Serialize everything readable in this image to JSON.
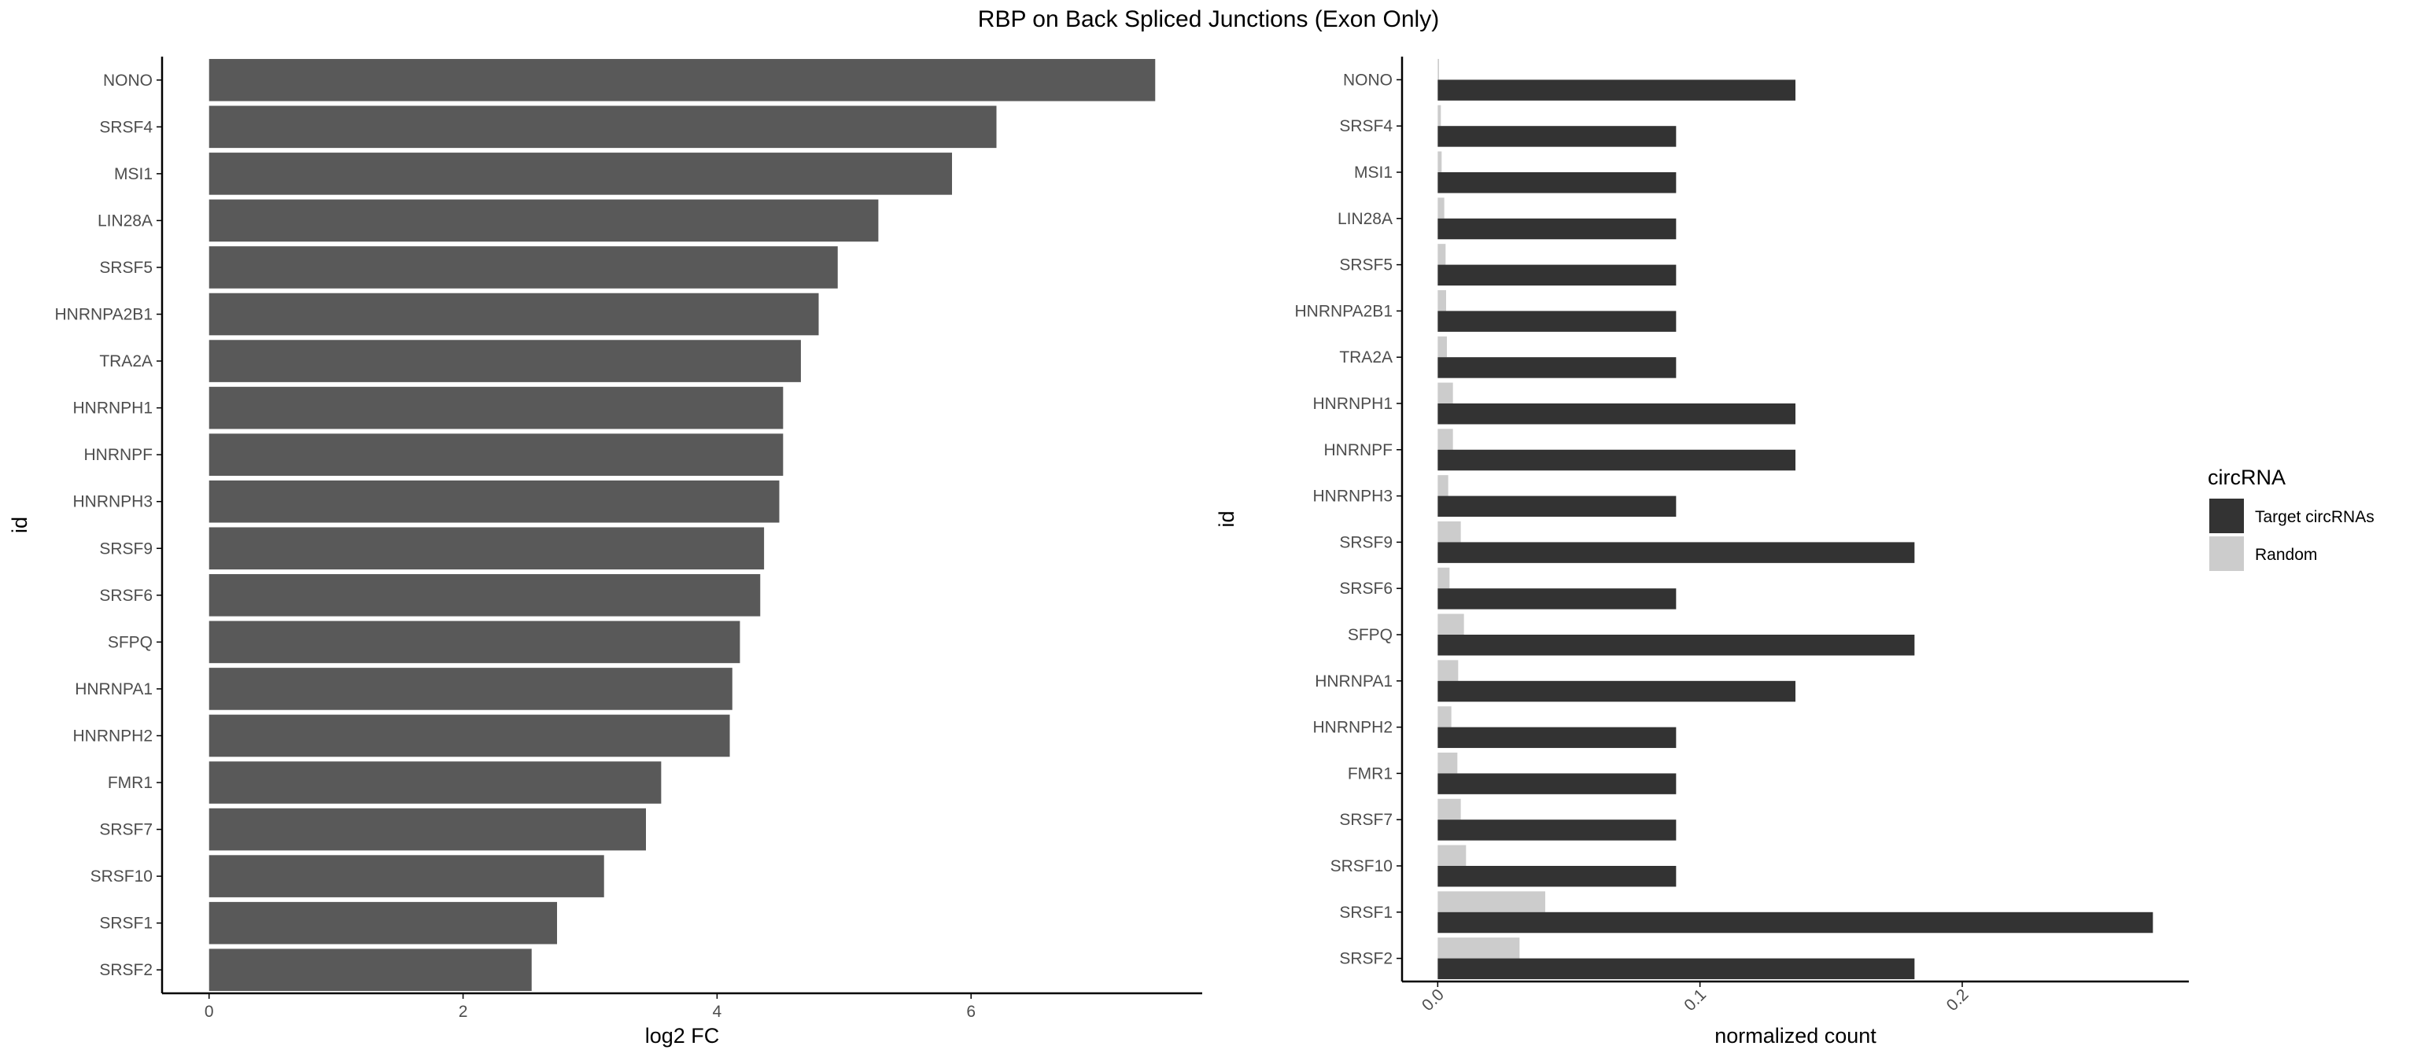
{
  "title": "RBP on Back Spliced Junctions (Exon Only)",
  "colors": {
    "bar_left": "#595959",
    "target": "#333333",
    "random": "#cccccc",
    "axis": "#000000",
    "tick_text": "#4d4d4d"
  },
  "chart_data": [
    {
      "type": "bar",
      "orientation": "horizontal",
      "categories": [
        "NONO",
        "SRSF4",
        "MSI1",
        "LIN28A",
        "SRSF5",
        "HNRNPA2B1",
        "TRA2A",
        "HNRNPH1",
        "HNRNPF",
        "HNRNPH3",
        "SRSF9",
        "SRSF6",
        "SFPQ",
        "HNRNPA1",
        "HNRNPH2",
        "FMR1",
        "SRSF7",
        "SRSF10",
        "SRSF1",
        "SRSF2"
      ],
      "values": [
        7.45,
        6.2,
        5.85,
        5.27,
        4.95,
        4.8,
        4.66,
        4.52,
        4.52,
        4.49,
        4.37,
        4.34,
        4.18,
        4.12,
        4.1,
        3.56,
        3.44,
        3.11,
        2.74,
        2.54
      ],
      "xlabel": "log2 FC",
      "ylabel": "id",
      "xlim": [
        -0.37,
        7.82
      ],
      "xticks": [
        0,
        2,
        4,
        6
      ],
      "xtick_labels": [
        "0",
        "2",
        "4",
        "6"
      ],
      "grid": false
    },
    {
      "type": "bar",
      "orientation": "horizontal",
      "grouped": true,
      "categories": [
        "NONO",
        "SRSF4",
        "MSI1",
        "LIN28A",
        "SRSF5",
        "HNRNPA2B1",
        "TRA2A",
        "HNRNPH1",
        "HNRNPF",
        "HNRNPH3",
        "SRSF9",
        "SRSF6",
        "SFPQ",
        "HNRNPA1",
        "HNRNPH2",
        "FMR1",
        "SRSF7",
        "SRSF10",
        "SRSF1",
        "SRSF2"
      ],
      "series": [
        {
          "name": "Target circRNAs",
          "values": [
            0.1364,
            0.0909,
            0.0909,
            0.0909,
            0.0909,
            0.0909,
            0.0909,
            0.1364,
            0.1364,
            0.0909,
            0.1818,
            0.0909,
            0.1818,
            0.1364,
            0.0909,
            0.0909,
            0.0909,
            0.0909,
            0.2727,
            0.1818
          ]
        },
        {
          "name": "Random",
          "values": [
            0.0005,
            0.0012,
            0.0015,
            0.0025,
            0.003,
            0.0032,
            0.0035,
            0.0058,
            0.0058,
            0.004,
            0.0088,
            0.0045,
            0.01,
            0.0078,
            0.0052,
            0.0075,
            0.0088,
            0.0108,
            0.041,
            0.0312
          ]
        }
      ],
      "xlabel": "normalized count",
      "ylabel": "id",
      "xlim": [
        -0.0136,
        0.2864
      ],
      "xticks": [
        0,
        0.1,
        0.2
      ],
      "xtick_labels": [
        "0.0",
        "0.1",
        "0.2"
      ],
      "legend_title": "circRNA",
      "legend_position": "right",
      "grid": false
    }
  ]
}
